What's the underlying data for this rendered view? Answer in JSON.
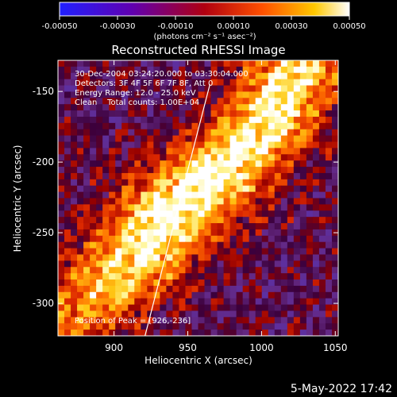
{
  "chart_data": {
    "type": "heatmap",
    "title": "Reconstructed RHESSI Image",
    "xlabel": "Heliocentric X (arcsec)",
    "ylabel": "Heliocentric Y (arcsec)",
    "xlim": [
      862,
      1052
    ],
    "ylim": [
      -323,
      -128
    ],
    "x_ticks": [
      "900",
      "950",
      "1000",
      "1050"
    ],
    "x_tick_values": [
      900,
      950,
      1000,
      1050
    ],
    "y_ticks": [
      "-150",
      "-200",
      "-250",
      "-300"
    ],
    "y_tick_values": [
      -150,
      -200,
      -250,
      -300
    ],
    "colorbar": {
      "range": [
        -0.0005,
        0.0005
      ],
      "tick_labels": [
        "-0.00050",
        "-0.00030",
        "-0.00010",
        "0.00010",
        "0.00030",
        "0.00050"
      ],
      "tick_values": [
        -0.0005,
        -0.0003,
        -0.0001,
        0.0001,
        0.0003,
        0.0005
      ],
      "units_label": "(photons cm⁻² s⁻¹ asec⁻²)",
      "colors": [
        "#2020ff",
        "#7000a0",
        "#c00000",
        "#ff6000",
        "#ffd000",
        "#ffffff"
      ]
    },
    "annotations": [
      "30-Dec-2004 03:24:20.000 to 03:30:04.000",
      "Detectors: 3F 4F 5F 6F 7F 8F, Att 0",
      "Energy Range: 12.0 - 25.0 keV",
      "Clean    Total counts: 1.00E+04",
      "Position of Peak = [926,-236]"
    ],
    "limb_line": {
      "x": [
        921,
        965
      ],
      "y": [
        -323,
        -145
      ]
    },
    "emission_band": [
      {
        "x": 870,
        "y": -310,
        "level": 0.5
      },
      {
        "x": 895,
        "y": -285,
        "level": 0.7
      },
      {
        "x": 920,
        "y": -262,
        "level": 0.9
      },
      {
        "x": 932,
        "y": -243,
        "level": 1.0
      },
      {
        "x": 950,
        "y": -225,
        "level": 0.95
      },
      {
        "x": 975,
        "y": -205,
        "level": 0.9
      },
      {
        "x": 995,
        "y": -182,
        "level": 0.85
      },
      {
        "x": 1010,
        "y": -160,
        "level": 0.9
      },
      {
        "x": 1025,
        "y": -135,
        "level": 0.8
      }
    ]
  },
  "footer": {
    "timestamp": "5-May-2022 17:42"
  }
}
